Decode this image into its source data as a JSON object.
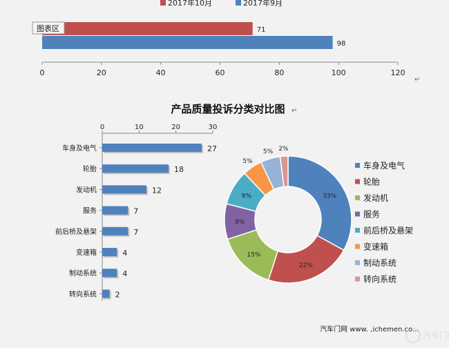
{
  "chart_data": [
    {
      "type": "bar",
      "orientation": "horizontal",
      "categories": [
        ""
      ],
      "series": [
        {
          "name": "2017年10月",
          "values": [
            71
          ],
          "color": "#c0504d"
        },
        {
          "name": "2017年9月",
          "values": [
            98
          ],
          "color": "#4f81bd"
        }
      ],
      "xlim": [
        0,
        120
      ],
      "xticks": [
        0,
        20,
        40,
        60,
        80,
        100,
        120
      ],
      "legend_position": "top",
      "chart_area_label": "图表区",
      "mark_glyph": "↵"
    },
    {
      "type": "bar",
      "orientation": "horizontal",
      "title": "产品质量投诉分类对比图",
      "title_mark": "↵",
      "categories": [
        "车身及电气",
        "轮胎",
        "发动机",
        "服务",
        "前后桥及悬架",
        "变速箱",
        "制动系统",
        "转向系统"
      ],
      "values": [
        27,
        18,
        12,
        7,
        7,
        4,
        4,
        2
      ],
      "color": "#4f81bd",
      "xlim": [
        0,
        30
      ],
      "xticks": [
        0,
        10,
        20,
        30
      ],
      "axis_position": "top"
    },
    {
      "type": "pie",
      "style": "donut",
      "labels": [
        "车身及电气",
        "轮胎",
        "发动机",
        "服务",
        "前后桥及悬架",
        "变速箱",
        "制动系统",
        "转向系统"
      ],
      "values": [
        33,
        22,
        15,
        9,
        9,
        5,
        5,
        2
      ],
      "value_labels": [
        "33%",
        "22%",
        "15%",
        "9%",
        "9%",
        "5%",
        "5%",
        "2%"
      ],
      "colors": [
        "#4f81bd",
        "#c0504d",
        "#9bbb59",
        "#8064a2",
        "#4bacc6",
        "#f79646",
        "#95b3d7",
        "#d99694"
      ],
      "legend_position": "right"
    }
  ],
  "footer": {
    "watermark": "汽车门网  www. ,ichemen.co...",
    "logo_text": "汽车门网"
  }
}
